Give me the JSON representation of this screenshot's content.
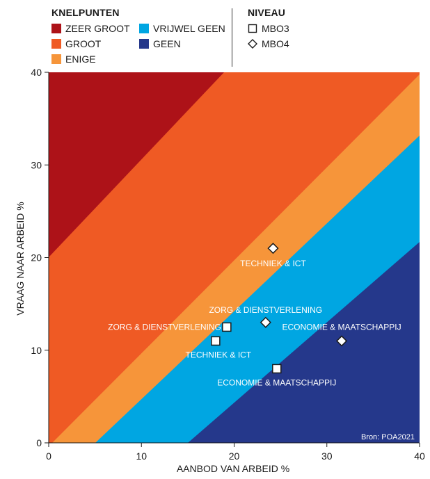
{
  "legend_left": {
    "title": "KNELPUNTEN",
    "items": [
      {
        "label": "ZEER GROOT",
        "color": "#ad1218"
      },
      {
        "label": "VRIJWEL GEEN",
        "color": "#00a6e2"
      },
      {
        "label": "GROOT",
        "color": "#ef5a24"
      },
      {
        "label": "GEEN",
        "color": "#25388b"
      },
      {
        "label": "ENIGE",
        "color": "#f6953a"
      }
    ]
  },
  "legend_right": {
    "title": "NIVEAU",
    "items": [
      {
        "label": "MBO3",
        "marker": "square"
      },
      {
        "label": "MBO4",
        "marker": "diamond"
      }
    ]
  },
  "source": "Bron: POA2021",
  "chart_data": {
    "type": "scatter",
    "xlabel": "AANBOD VAN ARBEID %",
    "ylabel": "VRAAG NAAR ARBEID %",
    "xlim": [
      0,
      40
    ],
    "ylim": [
      0,
      40
    ],
    "xticks": [
      "0",
      "10",
      "20",
      "30",
      "40"
    ],
    "yticks": [
      "0",
      "10",
      "20",
      "30",
      "40"
    ],
    "bands": [
      {
        "name": "ZEER GROOT",
        "color": "#ad1218"
      },
      {
        "name": "GROOT",
        "color": "#ef5a24"
      },
      {
        "name": "ENIGE",
        "color": "#f6953a"
      },
      {
        "name": "VRIJWEL GEEN",
        "color": "#00a6e2"
      },
      {
        "name": "GEEN",
        "color": "#25388b"
      }
    ],
    "series": [
      {
        "name": "MBO3",
        "marker": "square",
        "points": [
          {
            "label": "ZORG & DIENSTVERLENING",
            "x": 19.2,
            "y": 12.5
          },
          {
            "label": "TECHNIEK & ICT",
            "x": 18.0,
            "y": 11.0
          },
          {
            "label": "ECONOMIE & MAATSCHAPPIJ",
            "x": 24.6,
            "y": 8.0
          }
        ]
      },
      {
        "name": "MBO4",
        "marker": "diamond",
        "points": [
          {
            "label": "TECHNIEK & ICT",
            "x": 24.2,
            "y": 21.0
          },
          {
            "label": "ZORG & DIENSTVERLENING",
            "x": 23.4,
            "y": 13.0
          },
          {
            "label": "ECONOMIE & MAATSCHAPPIJ",
            "x": 31.6,
            "y": 11.0
          }
        ]
      }
    ]
  }
}
